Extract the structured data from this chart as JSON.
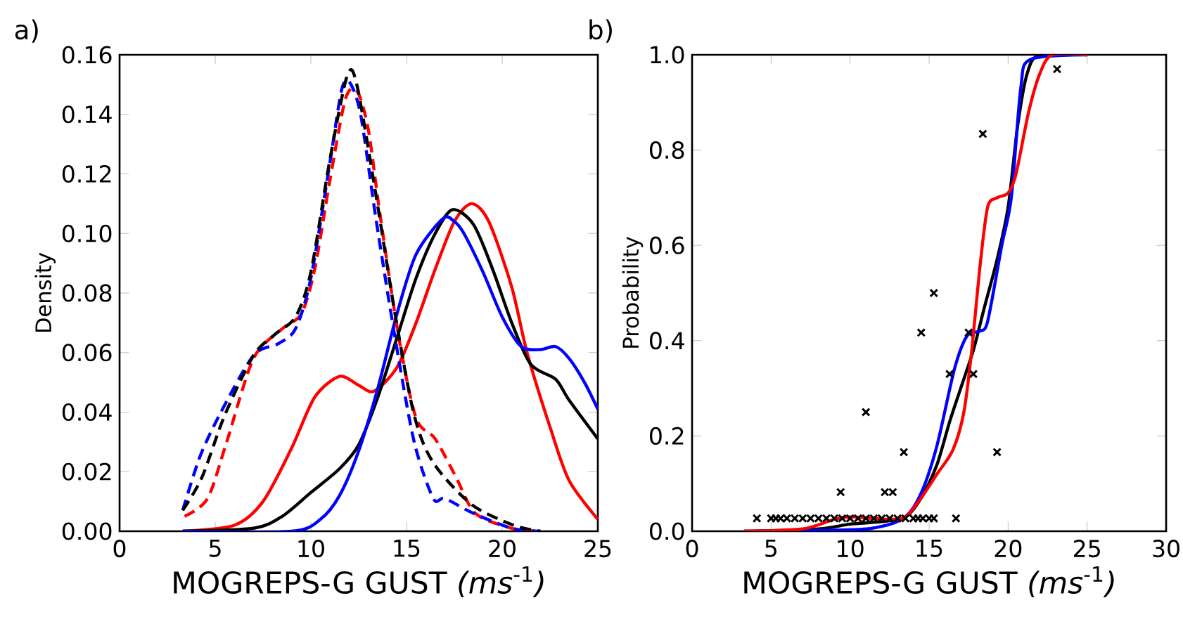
{
  "chart_data": [
    {
      "type": "line",
      "title": "a)",
      "xlabel": "MOGREPS-G GUST *(ms*$^{-1}$*)*",
      "ylabel": "Density",
      "xlim": [
        0,
        25
      ],
      "ylim": [
        0,
        0.16
      ],
      "xticks": [
        0,
        5,
        10,
        15,
        20,
        25
      ],
      "yticks": [
        {
          "value": 0,
          "label": "0.00"
        },
        {
          "value": 0.02,
          "label": "0.02"
        },
        {
          "value": 0.04,
          "label": "0.04"
        },
        {
          "value": 0.06,
          "label": "0.06"
        },
        {
          "value": 0.08,
          "label": "0.08"
        },
        {
          "value": 0.1,
          "label": "0.10"
        },
        {
          "value": 0.12,
          "label": "0.12"
        },
        {
          "value": 0.14,
          "label": "0.14"
        },
        {
          "value": 0.16,
          "label": "0.16"
        }
      ],
      "series": [
        {
          "color": "#ff0000",
          "line_style": "solid",
          "x": [
            3.3,
            6,
            7.5,
            9,
            10.2,
            11.5,
            12.5,
            13.3,
            14.5,
            15.5,
            16.5,
            17.5,
            18.4,
            19.3,
            20.5,
            21.3,
            22.5,
            23.5,
            25
          ],
          "values": [
            0.0,
            0.002,
            0.01,
            0.028,
            0.045,
            0.052,
            0.049,
            0.047,
            0.055,
            0.07,
            0.088,
            0.104,
            0.11,
            0.104,
            0.082,
            0.06,
            0.035,
            0.017,
            0.004
          ]
        },
        {
          "color": "#000000",
          "line_style": "solid",
          "x": [
            3.3,
            7,
            8.5,
            10,
            11.5,
            12.5,
            13.5,
            14.5,
            15.5,
            16.5,
            17.4,
            18.5,
            19.5,
            20.5,
            21.5,
            22.8,
            23.5,
            25
          ],
          "values": [
            0.0,
            0.001,
            0.005,
            0.013,
            0.021,
            0.029,
            0.045,
            0.065,
            0.085,
            0.1,
            0.108,
            0.103,
            0.088,
            0.07,
            0.056,
            0.051,
            0.044,
            0.031
          ]
        },
        {
          "color": "#0000ff",
          "line_style": "solid",
          "x": [
            3.3,
            9,
            10.5,
            11.5,
            12.5,
            13.5,
            14.5,
            15.5,
            16.9,
            17.5,
            18,
            19,
            20,
            21,
            22,
            22.8,
            23.5,
            24.3,
            25
          ],
          "values": [
            0.0,
            0.0,
            0.004,
            0.012,
            0.027,
            0.048,
            0.073,
            0.093,
            0.105,
            0.104,
            0.1,
            0.087,
            0.072,
            0.062,
            0.061,
            0.062,
            0.058,
            0.05,
            0.041
          ]
        },
        {
          "color": "#ff0000",
          "line_style": "dashed",
          "x": [
            3.4,
            4.6,
            5.6,
            7.0,
            8.5,
            9.5,
            10.2,
            11.0,
            11.8,
            12.4,
            13.0,
            13.6,
            14.6,
            15.5,
            16.5,
            17.6,
            18.6,
            20.5,
            22
          ],
          "values": [
            0.005,
            0.011,
            0.03,
            0.058,
            0.068,
            0.073,
            0.088,
            0.118,
            0.145,
            0.148,
            0.135,
            0.107,
            0.065,
            0.038,
            0.031,
            0.018,
            0.006,
            0.001,
            0.0
          ]
        },
        {
          "color": "#0000ff",
          "line_style": "dashed",
          "x": [
            3.3,
            4.2,
            5.3,
            7.0,
            8.3,
            9.2,
            10.0,
            11.0,
            11.6,
            12.0,
            12.6,
            13.4,
            14.4,
            15.4,
            16.4,
            17.0,
            18.5,
            20.5,
            22
          ],
          "values": [
            0.007,
            0.025,
            0.04,
            0.059,
            0.063,
            0.068,
            0.085,
            0.124,
            0.148,
            0.151,
            0.14,
            0.105,
            0.065,
            0.03,
            0.011,
            0.011,
            0.006,
            0.001,
            0.0
          ]
        },
        {
          "color": "#000000",
          "line_style": "dashed",
          "x": [
            3.3,
            4.3,
            5.5,
            7.0,
            8.1,
            9.2,
            10.0,
            11.0,
            11.9,
            12.4,
            13.4,
            14.4,
            15.4,
            16.4,
            18.4,
            20.6,
            22
          ],
          "values": [
            0.007,
            0.018,
            0.039,
            0.059,
            0.066,
            0.072,
            0.087,
            0.125,
            0.153,
            0.15,
            0.113,
            0.073,
            0.039,
            0.023,
            0.009,
            0.002,
            0.0
          ]
        }
      ]
    },
    {
      "type": "line",
      "title": "b)",
      "xlabel": "MOGREPS-G GUST *(ms*$^{-1}$*)*",
      "ylabel": "Probability",
      "xlim": [
        0,
        30
      ],
      "ylim": [
        0,
        1
      ],
      "xticks": [
        0,
        5,
        10,
        15,
        20,
        25,
        30
      ],
      "yticks": [
        {
          "value": 0,
          "label": "0.0"
        },
        {
          "value": 0.2,
          "label": "0.2"
        },
        {
          "value": 0.4,
          "label": "0.4"
        },
        {
          "value": 0.6,
          "label": "0.6"
        },
        {
          "value": 0.8,
          "label": "0.8"
        },
        {
          "value": 1,
          "label": "1.0"
        }
      ],
      "series": [
        {
          "type": "scatter",
          "marker": "cross",
          "color": "#000000",
          "x": [
            4.1,
            5.0,
            5.3,
            5.6,
            6.0,
            6.5,
            7.0,
            7.5,
            8.0,
            8.5,
            9.0,
            9.5,
            10.0,
            10.5,
            11.0,
            11.5,
            12.0,
            12.5,
            13.0,
            13.5,
            14.0,
            14.3,
            14.6,
            15.0,
            15.3,
            16.7,
            9.4,
            11.0,
            12.2,
            12.7,
            13.4,
            14.5,
            15.3,
            16.3,
            17.5,
            17.8,
            18.4,
            19.3,
            23.1
          ],
          "values": [
            0.027,
            0.027,
            0.027,
            0.027,
            0.027,
            0.027,
            0.027,
            0.027,
            0.027,
            0.027,
            0.027,
            0.027,
            0.027,
            0.027,
            0.027,
            0.027,
            0.027,
            0.027,
            0.027,
            0.027,
            0.027,
            0.027,
            0.027,
            0.027,
            0.027,
            0.027,
            0.082,
            0.25,
            0.082,
            0.082,
            0.166,
            0.417,
            0.5,
            0.33,
            0.417,
            0.33,
            0.834,
            0.166,
            0.97
          ]
        },
        {
          "color": "#000000",
          "line_style": "solid",
          "x": [
            3.3,
            8,
            10,
            12,
            13.5,
            14.5,
            15.5,
            16.3,
            17,
            17.8,
            18.5,
            19.3,
            20,
            20.6,
            21.2,
            22,
            25
          ],
          "values": [
            0.0,
            0.005,
            0.015,
            0.02,
            0.03,
            0.07,
            0.14,
            0.23,
            0.3,
            0.38,
            0.47,
            0.57,
            0.68,
            0.85,
            0.96,
            1.0,
            1.0
          ]
        },
        {
          "color": "#0000ff",
          "line_style": "solid",
          "x": [
            3.3,
            10,
            12,
            13.5,
            14.5,
            15.5,
            16.6,
            17.4,
            18.2,
            18.7,
            19.6,
            20.2,
            20.8,
            21.4,
            25
          ],
          "values": [
            0.0,
            0.003,
            0.01,
            0.03,
            0.08,
            0.18,
            0.34,
            0.41,
            0.42,
            0.44,
            0.6,
            0.7,
            0.93,
            0.99,
            1.0
          ]
        },
        {
          "color": "#ff0000",
          "line_style": "solid",
          "x": [
            3.3,
            7,
            9,
            10,
            11,
            12.5,
            13.5,
            14.5,
            15.5,
            16.5,
            17.2,
            17.7,
            18.2,
            18.7,
            19.3,
            20.0,
            20.5,
            21.3,
            22.0,
            22.8,
            25
          ],
          "values": [
            0.0,
            0.005,
            0.025,
            0.03,
            0.028,
            0.025,
            0.03,
            0.07,
            0.12,
            0.17,
            0.25,
            0.38,
            0.55,
            0.68,
            0.7,
            0.71,
            0.75,
            0.88,
            0.96,
            1.0,
            1.0
          ]
        }
      ]
    }
  ]
}
